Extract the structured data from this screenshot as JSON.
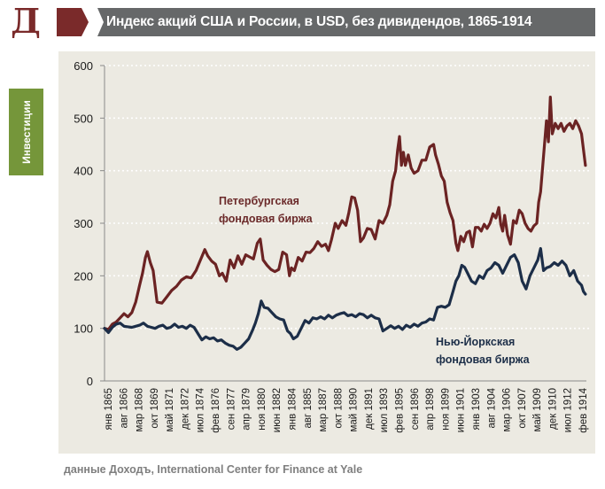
{
  "header": {
    "logo_letter": "Д",
    "title": "Индекс акций США и России, в USD, без дивидендов, 1865-1914",
    "logo_color": "#7a2a2a",
    "title_bar_color": "#666869"
  },
  "side_tab": {
    "label": "Инвестиции",
    "color": "#75963a"
  },
  "source": "данные Доходъ,  International Center for Finance at Yale",
  "chart_data": {
    "type": "line",
    "title": "Индекс акций США и России, в USD, без дивидендов, 1865-1914",
    "xlabel": "",
    "ylabel": "",
    "ylim": [
      0,
      600
    ],
    "yticks": [
      0,
      100,
      200,
      300,
      400,
      500,
      600
    ],
    "grid": "horizontal dotted",
    "x_tick_labels": [
      "янв 1865",
      "авг 1866",
      "мар 1868",
      "окт 1869",
      "май 1871",
      "дек 1872",
      "июл 1874",
      "фев 1876",
      "сен 1877",
      "апр 1879",
      "ноя 1880",
      "июн 1882",
      "янв 1884",
      "авг 1885",
      "мар 1887",
      "окт 1888",
      "май 1890",
      "дек 1891",
      "июл 1893",
      "фев 1895",
      "сен 1896",
      "апр 1898",
      "ноя 1899",
      "июн 1901",
      "янв 1903",
      "авг 1904",
      "мар 1906",
      "окт 1907",
      "май 1909",
      "дек 1910",
      "июл 1912",
      "фев 1914"
    ],
    "x_range": [
      1865.0,
      1914.5
    ],
    "series": [
      {
        "name": "Петербургская фондовая биржа",
        "color": "#6b2323",
        "x": [
          1865.0,
          1865.4,
          1865.8,
          1866.2,
          1866.6,
          1867.0,
          1867.4,
          1867.8,
          1868.2,
          1868.6,
          1868.9,
          1869.2,
          1869.4,
          1869.7,
          1870.0,
          1870.4,
          1870.9,
          1871.4,
          1871.9,
          1872.4,
          1872.9,
          1873.4,
          1873.9,
          1874.4,
          1874.9,
          1875.3,
          1875.6,
          1876.0,
          1876.4,
          1876.8,
          1877.1,
          1877.5,
          1877.9,
          1878.3,
          1878.7,
          1879.1,
          1879.5,
          1879.9,
          1880.3,
          1880.7,
          1881.0,
          1881.3,
          1881.7,
          1882.1,
          1882.5,
          1882.9,
          1883.3,
          1883.7,
          1884.0,
          1884.2,
          1884.5,
          1884.9,
          1885.3,
          1885.7,
          1886.1,
          1886.5,
          1886.9,
          1887.3,
          1887.7,
          1888.0,
          1888.3,
          1888.7,
          1889.0,
          1889.4,
          1889.8,
          1890.1,
          1890.4,
          1890.7,
          1891.0,
          1891.3,
          1891.6,
          1892.0,
          1892.4,
          1892.8,
          1893.2,
          1893.6,
          1894.0,
          1894.3,
          1894.6,
          1894.9,
          1895.1,
          1895.3,
          1895.5,
          1895.7,
          1895.9,
          1896.2,
          1896.5,
          1896.8,
          1897.2,
          1897.6,
          1898.0,
          1898.4,
          1898.8,
          1899.0,
          1899.3,
          1899.6,
          1899.9,
          1900.2,
          1900.5,
          1900.8,
          1901.1,
          1901.3,
          1901.6,
          1901.9,
          1902.2,
          1902.5,
          1902.8,
          1903.1,
          1903.4,
          1903.7,
          1904.0,
          1904.3,
          1904.6,
          1904.9,
          1905.2,
          1905.5,
          1905.7,
          1905.9,
          1906.1,
          1906.4,
          1906.7,
          1907.0,
          1907.3,
          1907.6,
          1907.9,
          1908.2,
          1908.5,
          1908.8,
          1909.1,
          1909.4,
          1909.6,
          1909.8,
          1910.0,
          1910.2,
          1910.4,
          1910.6,
          1910.8,
          1911.0,
          1911.3,
          1911.6,
          1911.9,
          1912.2,
          1912.5,
          1912.8,
          1913.1,
          1913.4,
          1913.7,
          1914.0,
          1914.2,
          1914.4
        ],
        "values": [
          100,
          98,
          108,
          112,
          120,
          128,
          122,
          130,
          150,
          182,
          205,
          235,
          246,
          225,
          210,
          150,
          148,
          160,
          172,
          180,
          192,
          198,
          196,
          210,
          232,
          250,
          238,
          228,
          222,
          200,
          205,
          190,
          230,
          215,
          238,
          222,
          240,
          236,
          232,
          262,
          270,
          230,
          220,
          212,
          208,
          212,
          245,
          240,
          200,
          215,
          210,
          235,
          228,
          245,
          244,
          252,
          265,
          256,
          260,
          248,
          268,
          300,
          290,
          305,
          296,
          320,
          350,
          348,
          325,
          265,
          272,
          290,
          288,
          270,
          305,
          300,
          315,
          335,
          380,
          400,
          438,
          465,
          410,
          435,
          410,
          430,
          405,
          395,
          400,
          420,
          420,
          445,
          450,
          430,
          412,
          390,
          380,
          340,
          320,
          305,
          262,
          248,
          275,
          265,
          282,
          285,
          255,
          292,
          292,
          285,
          298,
          290,
          300,
          318,
          310,
          330,
          298,
          285,
          315,
          278,
          260,
          305,
          300,
          325,
          318,
          300,
          290,
          285,
          295,
          300,
          340,
          360,
          405,
          450,
          495,
          455,
          540,
          470,
          490,
          480,
          490,
          475,
          485,
          490,
          480,
          495,
          485,
          470,
          440,
          410
        ]
      },
      {
        "name": "Нью-Йоркская фондовая биржа",
        "color": "#1c2e48",
        "x": [
          1865.0,
          1865.4,
          1865.8,
          1866.2,
          1866.6,
          1867.0,
          1867.4,
          1867.8,
          1868.2,
          1868.6,
          1869.0,
          1869.4,
          1869.8,
          1870.2,
          1870.6,
          1871.0,
          1871.4,
          1871.8,
          1872.2,
          1872.6,
          1873.0,
          1873.4,
          1873.8,
          1874.2,
          1874.6,
          1875.0,
          1875.4,
          1875.8,
          1876.2,
          1876.6,
          1877.0,
          1877.4,
          1877.8,
          1878.2,
          1878.6,
          1879.0,
          1879.4,
          1879.8,
          1880.2,
          1880.5,
          1880.8,
          1881.1,
          1881.4,
          1881.8,
          1882.2,
          1882.6,
          1883.0,
          1883.4,
          1883.8,
          1884.1,
          1884.4,
          1884.8,
          1885.2,
          1885.6,
          1886.0,
          1886.4,
          1886.8,
          1887.2,
          1887.6,
          1888.0,
          1888.4,
          1888.8,
          1889.2,
          1889.6,
          1890.0,
          1890.4,
          1890.8,
          1891.2,
          1891.6,
          1892.0,
          1892.4,
          1892.8,
          1893.2,
          1893.6,
          1894.0,
          1894.4,
          1894.8,
          1895.2,
          1895.6,
          1896.0,
          1896.4,
          1896.8,
          1897.2,
          1897.6,
          1898.0,
          1898.4,
          1898.8,
          1899.2,
          1899.6,
          1900.0,
          1900.4,
          1900.8,
          1901.1,
          1901.4,
          1901.7,
          1902.0,
          1902.3,
          1902.7,
          1903.1,
          1903.5,
          1903.9,
          1904.3,
          1904.7,
          1905.1,
          1905.5,
          1905.9,
          1906.3,
          1906.7,
          1907.1,
          1907.5,
          1907.9,
          1908.3,
          1908.7,
          1909.1,
          1909.5,
          1909.8,
          1910.1,
          1910.4,
          1910.8,
          1911.2,
          1911.6,
          1912.0,
          1912.4,
          1912.8,
          1913.2,
          1913.6,
          1914.0,
          1914.2,
          1914.4
        ],
        "values": [
          100,
          92,
          102,
          108,
          110,
          104,
          103,
          102,
          104,
          106,
          110,
          104,
          102,
          100,
          104,
          106,
          100,
          102,
          108,
          102,
          104,
          100,
          106,
          102,
          90,
          78,
          84,
          80,
          82,
          76,
          78,
          72,
          68,
          66,
          60,
          64,
          72,
          80,
          96,
          110,
          128,
          152,
          140,
          138,
          130,
          122,
          118,
          116,
          95,
          90,
          80,
          85,
          100,
          115,
          110,
          120,
          118,
          122,
          118,
          125,
          120,
          125,
          128,
          130,
          124,
          126,
          122,
          128,
          126,
          120,
          125,
          120,
          118,
          95,
          100,
          105,
          100,
          104,
          98,
          106,
          102,
          108,
          104,
          110,
          112,
          118,
          116,
          140,
          142,
          140,
          145,
          170,
          190,
          200,
          220,
          216,
          205,
          190,
          185,
          200,
          195,
          210,
          215,
          225,
          220,
          205,
          220,
          235,
          240,
          225,
          190,
          175,
          200,
          215,
          230,
          252,
          210,
          215,
          218,
          225,
          220,
          228,
          220,
          200,
          210,
          190,
          182,
          170,
          165
        ]
      }
    ],
    "annotations": [
      {
        "text_line1": "Петербургская",
        "text_line2": "фондовая биржа",
        "series": "Петербургская фондовая биржа"
      },
      {
        "text_line1": "Нью-Йоркская",
        "text_line2": "фондовая биржа",
        "series": "Нью-Йоркская фондовая биржа"
      }
    ]
  }
}
